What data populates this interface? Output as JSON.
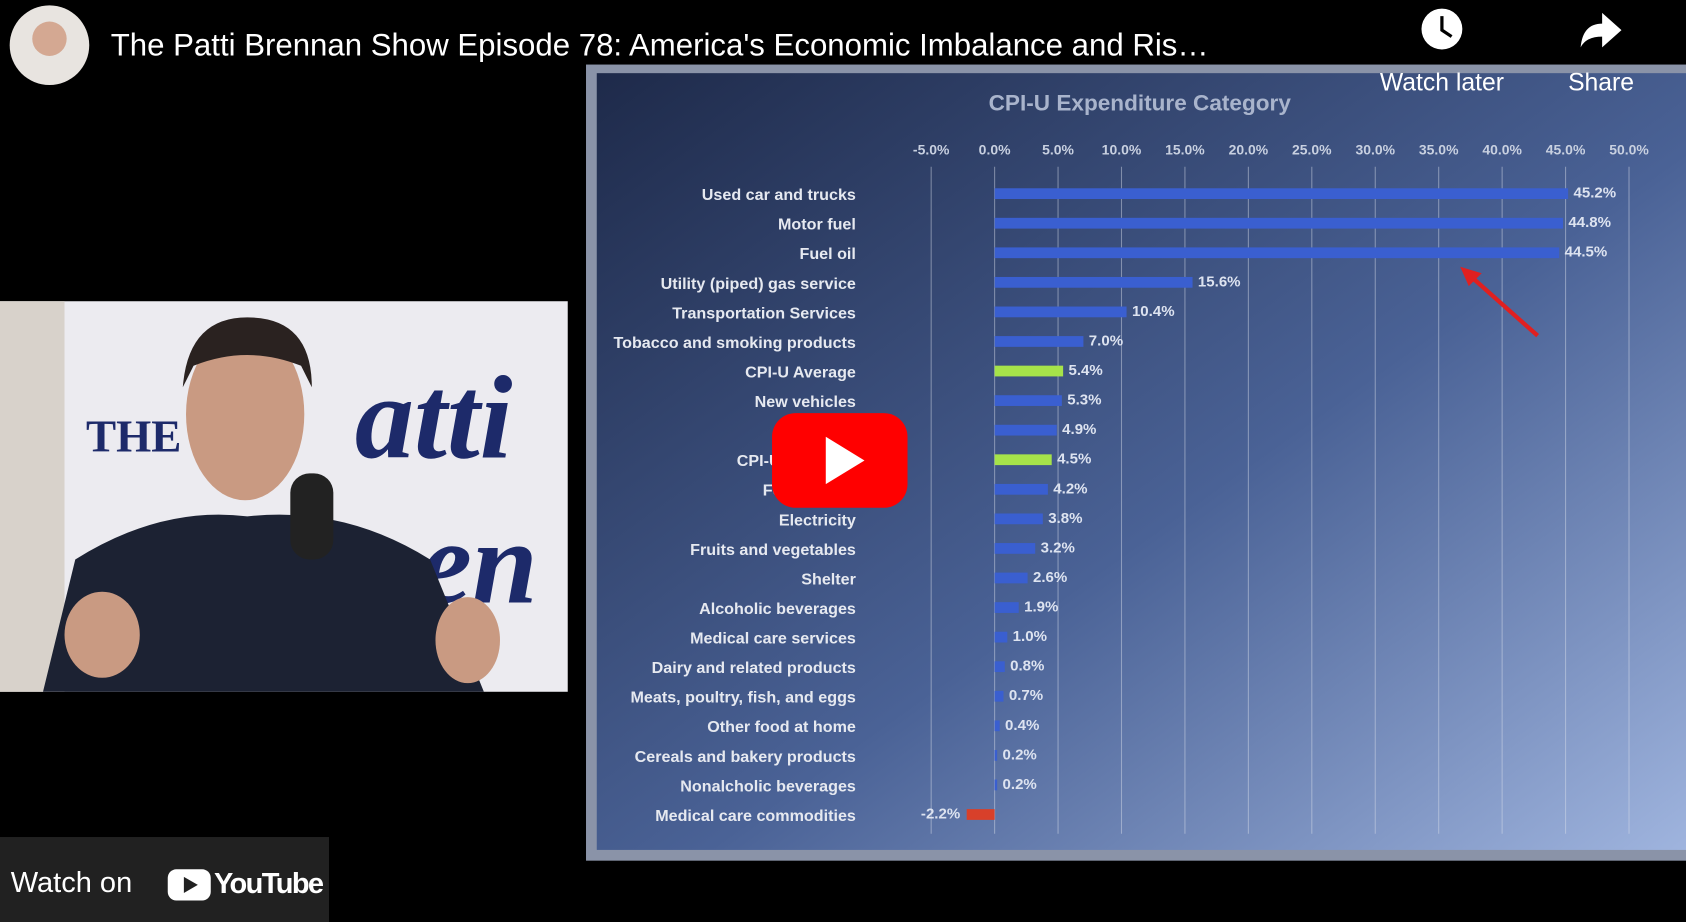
{
  "header": {
    "title": "The Patti Brennan Show Episode 78: America's Economic Imbalance and Ris…",
    "watch_later": "Watch later",
    "share": "Share"
  },
  "footer": {
    "watch_on": "Watch on",
    "brand": "YouTube"
  },
  "video_backdrop": {
    "logo_texts": [
      "THE",
      "atti",
      "en"
    ]
  },
  "chart_data": {
    "type": "bar",
    "orientation": "horizontal",
    "title": "CPI-U Expenditure Category",
    "categories": [
      "Used car and trucks",
      "Motor fuel",
      "Fuel oil",
      "Utility (piped) gas service",
      "Transportation Services",
      "Tobacco and smoking products",
      "CPI-U Average",
      "New vehicles",
      null,
      "CPI-U Less Foo",
      "Food away f",
      "Electricity",
      "Fruits and vegetables",
      "Shelter",
      "Alcoholic beverages",
      "Medical care services",
      "Dairy and related products",
      "Meats, poultry, fish, and eggs",
      "Other food at home",
      "Cereals and bakery products",
      "Nonalcholic beverages",
      "Medical care commodities"
    ],
    "values": [
      45.2,
      44.8,
      44.5,
      15.6,
      10.4,
      7.0,
      5.4,
      5.3,
      4.9,
      4.5,
      4.2,
      3.8,
      3.2,
      2.6,
      1.9,
      1.0,
      0.8,
      0.7,
      0.4,
      0.2,
      0.2,
      -2.2
    ],
    "value_labels": [
      "45.2%",
      "44.8%",
      "44.5%",
      "15.6%",
      "10.4%",
      "7.0%",
      "5.4%",
      "5.3%",
      "4.9%",
      "4.5%",
      "4.2%",
      "3.8%",
      "3.2%",
      "2.6%",
      "1.9%",
      "1.0%",
      "0.8%",
      "0.7%",
      "0.4%",
      "0.2%",
      "0.2%",
      "-2.2%"
    ],
    "colors": [
      "#3a5fd0",
      "#3a5fd0",
      "#3a5fd0",
      "#3a5fd0",
      "#3a5fd0",
      "#3a5fd0",
      "#a6e34a",
      "#3a5fd0",
      "#3a5fd0",
      "#a6e34a",
      "#3a5fd0",
      "#3a5fd0",
      "#3a5fd0",
      "#3a5fd0",
      "#3a5fd0",
      "#3a5fd0",
      "#3a5fd0",
      "#3a5fd0",
      "#3a5fd0",
      "#3a5fd0",
      "#3a5fd0",
      "#d8402a"
    ],
    "xlim": [
      -5,
      50
    ],
    "xticks": [
      {
        "value": -5,
        "label": "-5.0%"
      },
      {
        "value": 0,
        "label": "0.0%"
      },
      {
        "value": 5,
        "label": "5.0%"
      },
      {
        "value": 10,
        "label": "10.0%"
      },
      {
        "value": 15,
        "label": "15.0%"
      },
      {
        "value": 20,
        "label": "20.0%"
      },
      {
        "value": 25,
        "label": "25.0%"
      },
      {
        "value": 30,
        "label": "30.0%"
      },
      {
        "value": 35,
        "label": "35.0%"
      },
      {
        "value": 40,
        "label": "40.0%"
      },
      {
        "value": 45,
        "label": "45.0%"
      },
      {
        "value": 50,
        "label": "50.0%"
      }
    ],
    "grid": true
  }
}
